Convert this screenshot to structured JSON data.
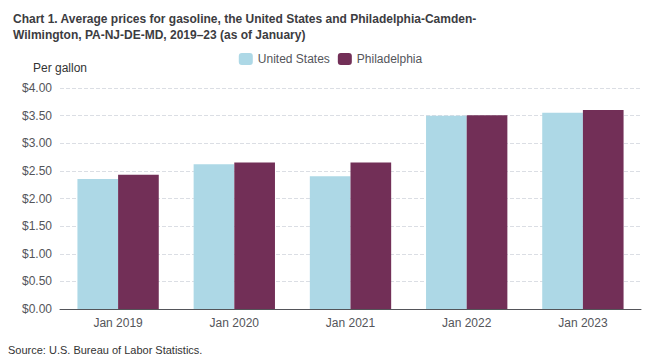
{
  "chart_data": {
    "type": "bar",
    "title": "Chart 1. Average prices for gasoline, the United States and Philadelphia-Camden-\nWilmington, PA-NJ-DE-MD, 2019–23 (as of January)",
    "ylabel": "Per gallon",
    "annotations": [
      "Source: U.S. Bureau of Labor Statistics."
    ],
    "categories": [
      "Jan 2019",
      "Jan 2020",
      "Jan 2021",
      "Jan 2022",
      "Jan 2023"
    ],
    "series": [
      {
        "name": "United States",
        "color": "#ADD8E6",
        "values": [
          2.354,
          2.622,
          2.402,
          3.499,
          3.554
        ]
      },
      {
        "name": "Philadelphia",
        "color": "#722F57",
        "values": [
          2.432,
          2.652,
          2.652,
          3.506,
          3.601
        ]
      }
    ],
    "ylim": [
      0,
      4.0
    ],
    "yticks": [
      {
        "value": 0.0,
        "label": "$0.00"
      },
      {
        "value": 0.5,
        "label": "$0.50"
      },
      {
        "value": 1.0,
        "label": "$1.00"
      },
      {
        "value": 1.5,
        "label": "$1.50"
      },
      {
        "value": 2.0,
        "label": "$2.00"
      },
      {
        "value": 2.5,
        "label": "$2.50"
      },
      {
        "value": 3.0,
        "label": "$3.00"
      },
      {
        "value": 3.5,
        "label": "$3.50"
      },
      {
        "value": 4.0,
        "label": "$4.00"
      }
    ],
    "grid": true,
    "legend": "top"
  }
}
